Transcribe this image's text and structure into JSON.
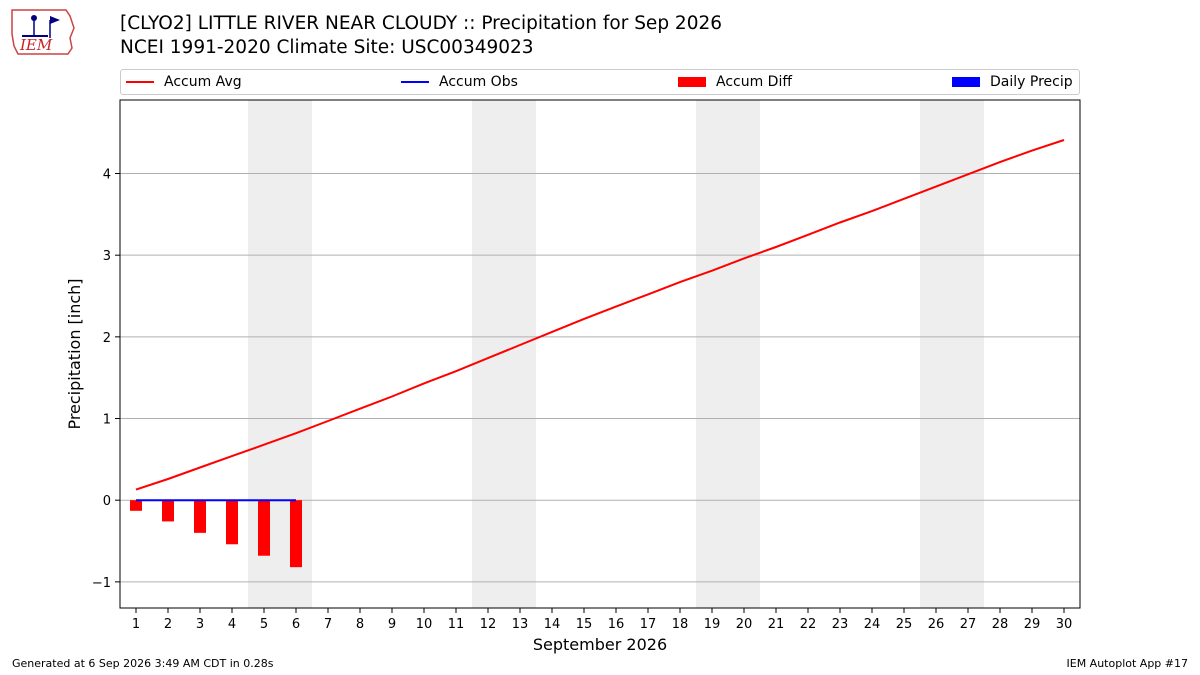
{
  "logo": {
    "text": "IEM"
  },
  "title": {
    "line1": "[CLYO2] LITTLE RIVER NEAR CLOUDY :: Precipitation for Sep 2026",
    "line2": "NCEI 1991-2020 Climate Site: USC00349023"
  },
  "legend": {
    "items": [
      {
        "label": "Accum Avg",
        "kind": "line",
        "color": "#ff0000"
      },
      {
        "label": "Accum Obs",
        "kind": "line",
        "color": "#0000ff"
      },
      {
        "label": "Accum Diff",
        "kind": "box",
        "color": "#ff0000"
      },
      {
        "label": "Daily Precip",
        "kind": "box",
        "color": "#0000ff"
      }
    ]
  },
  "footer": {
    "left": "Generated at 6 Sep 2026 3:49 AM CDT in 0.28s",
    "right": "IEM Autoplot App #17"
  },
  "chart_data": {
    "type": "line",
    "xlabel": "September 2026",
    "ylabel": "Precipitation [inch]",
    "xlim": [
      0.5,
      30.5
    ],
    "ylim": [
      -1.32,
      4.9
    ],
    "x_ticks": [
      1,
      2,
      3,
      4,
      5,
      6,
      7,
      8,
      9,
      10,
      11,
      12,
      13,
      14,
      15,
      16,
      17,
      18,
      19,
      20,
      21,
      22,
      23,
      24,
      25,
      26,
      27,
      28,
      29,
      30
    ],
    "y_ticks": [
      -1,
      0,
      1,
      2,
      3,
      4
    ],
    "y_tick_labels": [
      "−1",
      "0",
      "1",
      "2",
      "3",
      "4"
    ],
    "grid": "horizontal",
    "weekend_shading": [
      [
        4.5,
        6.5
      ],
      [
        11.5,
        13.5
      ],
      [
        18.5,
        20.5
      ],
      [
        25.5,
        27.5
      ]
    ],
    "weekend_color": "#eeeeee",
    "series": [
      {
        "name": "Accum Avg",
        "kind": "line",
        "color": "#ff0000",
        "x": [
          1,
          2,
          3,
          4,
          5,
          6,
          7,
          8,
          9,
          10,
          11,
          12,
          13,
          14,
          15,
          16,
          17,
          18,
          19,
          20,
          21,
          22,
          23,
          24,
          25,
          26,
          27,
          28,
          29,
          30
        ],
        "values": [
          0.13,
          0.26,
          0.4,
          0.54,
          0.68,
          0.82,
          0.97,
          1.12,
          1.27,
          1.43,
          1.58,
          1.74,
          1.9,
          2.06,
          2.22,
          2.37,
          2.52,
          2.67,
          2.81,
          2.96,
          3.1,
          3.25,
          3.4,
          3.54,
          3.69,
          3.84,
          3.99,
          4.14,
          4.28,
          4.41
        ]
      },
      {
        "name": "Accum Obs",
        "kind": "line",
        "color": "#0000ff",
        "x": [
          1,
          2,
          3,
          4,
          5,
          6
        ],
        "values": [
          0,
          0,
          0,
          0,
          0,
          0
        ]
      },
      {
        "name": "Accum Diff",
        "kind": "bar",
        "color": "#ff0000",
        "x": [
          1,
          2,
          3,
          4,
          5,
          6
        ],
        "values": [
          -0.13,
          -0.26,
          -0.4,
          -0.54,
          -0.68,
          -0.82
        ]
      },
      {
        "name": "Daily Precip",
        "kind": "bar",
        "color": "#0000ff",
        "x": [
          1,
          2,
          3,
          4,
          5,
          6
        ],
        "values": [
          0,
          0,
          0,
          0,
          0,
          0
        ]
      }
    ]
  }
}
